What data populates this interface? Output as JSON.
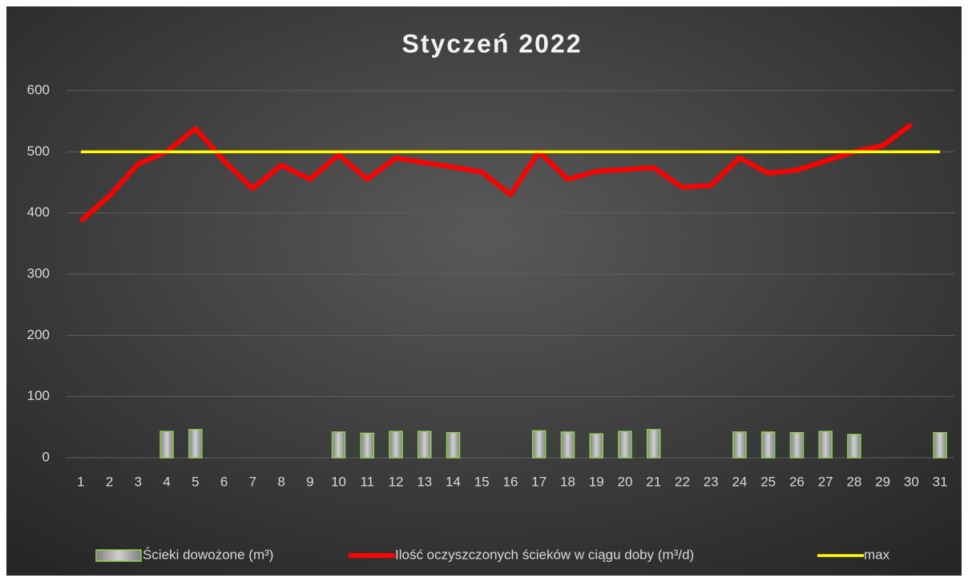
{
  "chart_data": {
    "type": "bar_line",
    "title": "Styczeń 2022",
    "categories": [
      "1",
      "2",
      "3",
      "4",
      "5",
      "6",
      "7",
      "8",
      "9",
      "10",
      "11",
      "12",
      "13",
      "14",
      "15",
      "16",
      "17",
      "18",
      "19",
      "20",
      "21",
      "22",
      "23",
      "24",
      "25",
      "26",
      "27",
      "28",
      "29",
      "30",
      "31"
    ],
    "ylim": [
      0,
      600
    ],
    "yticks": [
      0,
      100,
      200,
      300,
      400,
      500,
      600
    ],
    "grid": true,
    "legend": "bottom",
    "series": [
      {
        "name": "Ścieki dowożone (m³)",
        "type": "bar",
        "color": "#a6a6a6",
        "edge_color": "#92d050",
        "values": [
          null,
          null,
          null,
          43,
          46,
          null,
          null,
          null,
          null,
          42,
          40,
          43,
          43,
          41,
          null,
          null,
          44,
          42,
          39,
          43,
          46,
          null,
          null,
          42,
          42,
          41,
          43,
          38,
          null,
          null,
          41
        ]
      },
      {
        "name": "Ilość oczyszczonych ścieków w ciągu doby (m³/d)",
        "type": "line",
        "color": "#ff0000",
        "values": [
          387,
          428,
          480,
          500,
          538,
          485,
          440,
          478,
          455,
          495,
          455,
          490,
          482,
          475,
          467,
          430,
          500,
          455,
          468,
          471,
          474,
          442,
          445,
          490,
          465,
          470,
          485,
          500,
          510,
          545,
          null
        ]
      },
      {
        "name": "max",
        "type": "line",
        "color": "#ffff00",
        "values": [
          500,
          500,
          500,
          500,
          500,
          500,
          500,
          500,
          500,
          500,
          500,
          500,
          500,
          500,
          500,
          500,
          500,
          500,
          500,
          500,
          500,
          500,
          500,
          500,
          500,
          500,
          500,
          500,
          500,
          500,
          500
        ]
      }
    ]
  }
}
